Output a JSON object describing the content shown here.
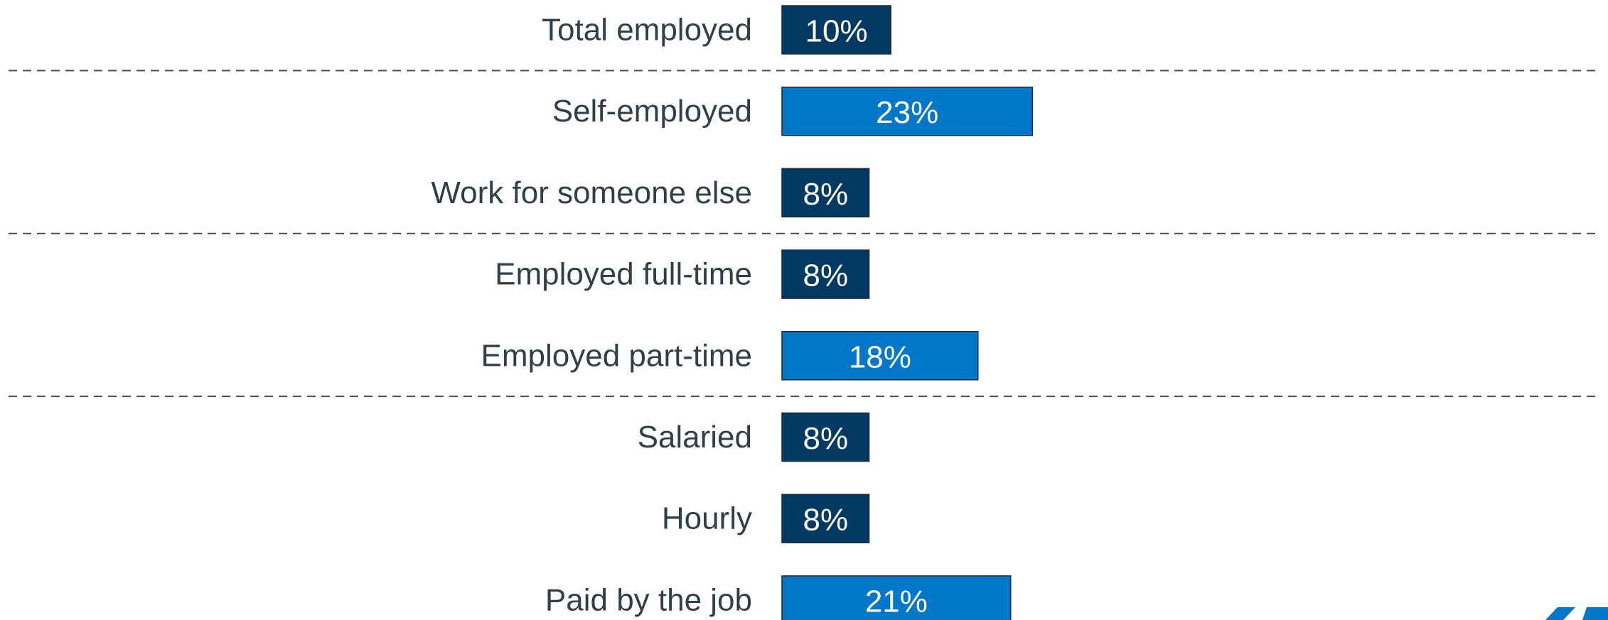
{
  "chart_data": {
    "type": "bar",
    "orientation": "horizontal",
    "title": "",
    "xlabel": "",
    "ylabel": "",
    "xlim": [
      0,
      100
    ],
    "grid": false,
    "legend": "none",
    "categories": [
      "Total employed",
      "Self-employed",
      "Work for someone else",
      "Employed full-time",
      "Employed part-time",
      "Salaried",
      "Hourly",
      "Paid by the job"
    ],
    "values": [
      10,
      23,
      8,
      8,
      18,
      8,
      8,
      21
    ],
    "data_labels": [
      "10%",
      "23%",
      "8%",
      "8%",
      "18%",
      "8%",
      "8%",
      "21%"
    ],
    "bar_colors": [
      "#003a63",
      "#0077c8",
      "#003a63",
      "#003a63",
      "#0077c8",
      "#003a63",
      "#003a63",
      "#0077c8"
    ],
    "group_dividers_after": [
      "Total employed",
      "Work for someone else",
      "Employed part-time"
    ]
  },
  "colors": {
    "dark_bar": "#003a63",
    "light_bar": "#0077c8",
    "label_text": "#333f48",
    "logo": "#0077c8"
  },
  "logo": {
    "icon": "brand-logo-fragment"
  }
}
